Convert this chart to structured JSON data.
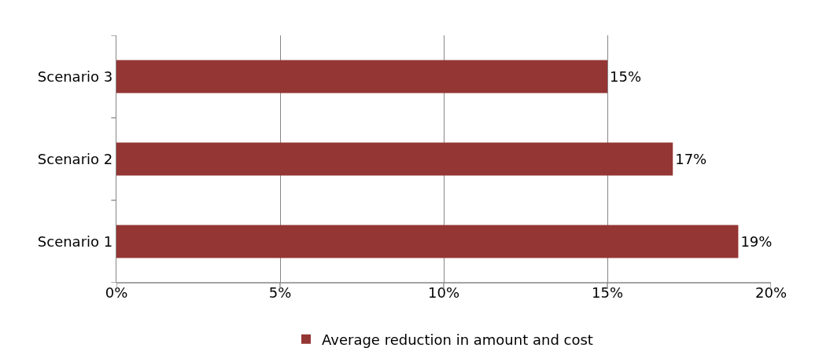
{
  "chart_data": {
    "type": "bar",
    "orientation": "horizontal",
    "categories": [
      "Scenario 3",
      "Scenario 2",
      "Scenario 1"
    ],
    "series": [
      {
        "name": "Average reduction in amount and cost",
        "color": "#943634",
        "values": [
          15,
          17,
          19
        ],
        "value_labels": [
          "15%",
          "17%",
          "19%"
        ]
      }
    ],
    "xlim": [
      0,
      20
    ],
    "xticks": [
      {
        "value": 0,
        "label": "0%"
      },
      {
        "value": 5,
        "label": "5%"
      },
      {
        "value": 10,
        "label": "10%"
      },
      {
        "value": 15,
        "label": "15%"
      },
      {
        "value": 20,
        "label": "20%"
      }
    ],
    "grid": "x",
    "legend": "bottom"
  }
}
